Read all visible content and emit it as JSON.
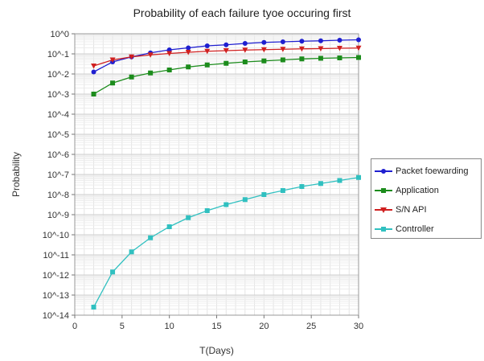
{
  "chart_data": {
    "type": "line",
    "title": "Probability of each failure tyoe occuring first",
    "xlabel": "T(Days)",
    "ylabel": "Probability",
    "x_ticks": [
      0,
      5,
      10,
      15,
      20,
      25,
      30
    ],
    "xlim": [
      0,
      30
    ],
    "y_scale": "log",
    "ylim_exponent": [
      -14,
      0
    ],
    "y_tick_labels": [
      "10^0",
      "10^-1",
      "10^-2",
      "10^-3",
      "10^-4",
      "10^-5",
      "10^-6",
      "10^-7",
      "10^-8",
      "10^-9",
      "10^-10",
      "10^-11",
      "10^-12",
      "10^-13",
      "10^-14"
    ],
    "grid": true,
    "legend_position": "right",
    "x": [
      2,
      4,
      6,
      8,
      10,
      12,
      14,
      16,
      18,
      20,
      22,
      24,
      26,
      28,
      30
    ],
    "series": [
      {
        "name": "Packet foewarding",
        "color": "#1f1fd0",
        "marker": "circle",
        "log10_values": [
          -1.9,
          -1.4,
          -1.15,
          -0.95,
          -0.8,
          -0.7,
          -0.6,
          -0.55,
          -0.48,
          -0.43,
          -0.4,
          -0.37,
          -0.35,
          -0.32,
          -0.3
        ]
      },
      {
        "name": "Application",
        "color": "#1c8c1c",
        "marker": "square",
        "log10_values": [
          -3.0,
          -2.45,
          -2.15,
          -1.95,
          -1.8,
          -1.65,
          -1.55,
          -1.47,
          -1.4,
          -1.35,
          -1.3,
          -1.25,
          -1.22,
          -1.2,
          -1.18
        ]
      },
      {
        "name": "S/N API",
        "color": "#d02020",
        "marker": "triangle-down",
        "log10_values": [
          -1.6,
          -1.3,
          -1.15,
          -1.05,
          -0.98,
          -0.92,
          -0.87,
          -0.84,
          -0.81,
          -0.79,
          -0.77,
          -0.75,
          -0.74,
          -0.72,
          -0.71
        ]
      },
      {
        "name": "Controller",
        "color": "#30c0c0",
        "marker": "square",
        "log10_values": [
          -13.6,
          -11.85,
          -10.85,
          -10.15,
          -9.6,
          -9.15,
          -8.8,
          -8.5,
          -8.25,
          -8.0,
          -7.8,
          -7.6,
          -7.45,
          -7.3,
          -7.15
        ]
      }
    ]
  }
}
